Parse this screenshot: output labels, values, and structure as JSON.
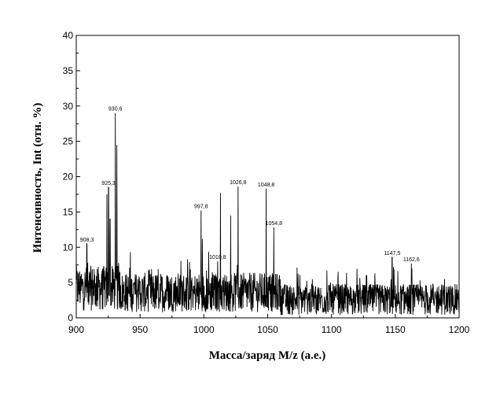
{
  "chart_data": {
    "type": "line",
    "title": "",
    "xlabel": "Масса/заряд M/z (а.е.)",
    "ylabel": "Интенсивность, Int (отн. %)",
    "xlim": [
      900,
      1200
    ],
    "ylim": [
      0,
      40
    ],
    "x_ticks": [
      "900",
      "950",
      "1000",
      "1050",
      "1100",
      "1150",
      "1200"
    ],
    "y_ticks": [
      "0",
      "5",
      "10",
      "15",
      "20",
      "25",
      "30",
      "35",
      "40"
    ],
    "grid": false,
    "legend": "none",
    "line_color": "#000000",
    "peaks": [
      {
        "x": 908.3,
        "y": 10.5,
        "label": "908,3"
      },
      {
        "x": 924.0,
        "y": 17.5,
        "label": ""
      },
      {
        "x": 925.3,
        "y": 18.5,
        "label": "925,3"
      },
      {
        "x": 926.5,
        "y": 14.0,
        "label": ""
      },
      {
        "x": 930.6,
        "y": 29.0,
        "label": "930,6"
      },
      {
        "x": 931.8,
        "y": 24.5,
        "label": ""
      },
      {
        "x": 997.8,
        "y": 15.2,
        "label": "997,8"
      },
      {
        "x": 998.8,
        "y": 11.2,
        "label": ""
      },
      {
        "x": 1010.8,
        "y": 8.0,
        "label": "1010,8"
      },
      {
        "x": 1013.0,
        "y": 17.7,
        "label": ""
      },
      {
        "x": 1021.0,
        "y": 14.5,
        "label": ""
      },
      {
        "x": 1026.8,
        "y": 18.6,
        "label": "1026,8"
      },
      {
        "x": 1048.8,
        "y": 18.3,
        "label": "1048,8"
      },
      {
        "x": 1054.8,
        "y": 12.8,
        "label": "1054,8"
      },
      {
        "x": 1147.5,
        "y": 8.6,
        "label": "1147,5"
      },
      {
        "x": 1162.6,
        "y": 7.7,
        "label": "1162,6"
      }
    ]
  }
}
